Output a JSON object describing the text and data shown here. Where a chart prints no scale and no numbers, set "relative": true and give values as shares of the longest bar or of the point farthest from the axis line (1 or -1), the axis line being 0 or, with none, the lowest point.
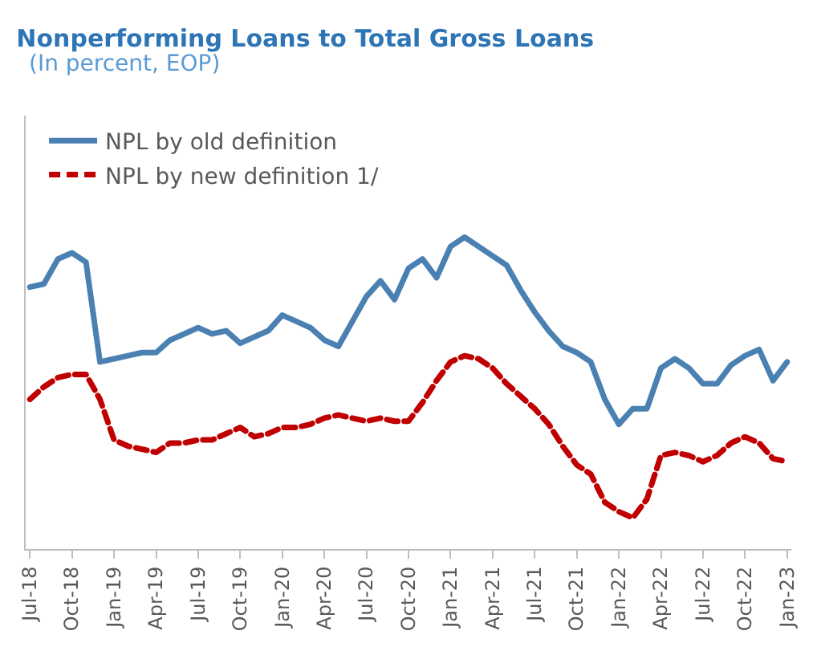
{
  "chart_data": {
    "type": "line",
    "title": "Nonperforming Loans to Total Gross Loans",
    "subtitle": "(In percent, EOP)",
    "relative": true,
    "legend": "top left",
    "categories": [
      "Jul-18",
      null,
      null,
      "Oct-18",
      null,
      null,
      "Jan-19",
      null,
      null,
      "Apr-19",
      null,
      null,
      "Jul-19",
      null,
      null,
      "Oct-19",
      null,
      null,
      "Jan-20",
      null,
      null,
      "Apr-20",
      null,
      null,
      "Jul-20",
      null,
      null,
      "Oct-20",
      null,
      null,
      "Jan-21",
      null,
      null,
      "Apr-21",
      null,
      null,
      "Jul-21",
      null,
      null,
      "Oct-21",
      null,
      null,
      "Jan-22",
      null,
      null,
      "Apr-22",
      null,
      null,
      "Jul-22",
      null,
      null,
      "Oct-22",
      null,
      null,
      "Jan-23"
    ],
    "series": [
      {
        "name": "NPL by old definition",
        "color": "#4a80b2",
        "line_style": "solid",
        "values": [
          0.84,
          0.85,
          0.93,
          0.95,
          0.92,
          0.6,
          0.61,
          0.62,
          0.63,
          0.63,
          0.67,
          0.69,
          0.71,
          0.69,
          0.7,
          0.66,
          0.68,
          0.7,
          0.75,
          0.73,
          0.71,
          0.67,
          0.65,
          0.73,
          0.81,
          0.86,
          0.8,
          0.9,
          0.93,
          0.87,
          0.97,
          1.0,
          0.97,
          0.94,
          0.91,
          0.83,
          0.76,
          0.7,
          0.65,
          0.63,
          0.6,
          0.48,
          0.4,
          0.45,
          0.45,
          0.58,
          0.61,
          0.58,
          0.53,
          0.53,
          0.59,
          0.62,
          0.64,
          0.54,
          0.6
        ]
      },
      {
        "name": "NPL by new definition 1/",
        "color": "#c00000",
        "line_style": "dashed",
        "values": [
          0.48,
          0.52,
          0.55,
          0.56,
          0.56,
          0.48,
          0.35,
          0.33,
          0.32,
          0.31,
          0.34,
          0.34,
          0.35,
          0.35,
          0.37,
          0.39,
          0.36,
          0.37,
          0.39,
          0.39,
          0.4,
          0.42,
          0.43,
          0.42,
          0.41,
          0.42,
          0.41,
          0.41,
          0.47,
          0.54,
          0.6,
          0.62,
          0.61,
          0.58,
          0.53,
          0.49,
          0.45,
          0.4,
          0.33,
          0.27,
          0.24,
          0.15,
          0.12,
          0.1,
          0.16,
          0.3,
          0.31,
          0.3,
          0.28,
          0.3,
          0.34,
          0.36,
          0.34,
          0.29,
          0.28
        ]
      }
    ]
  }
}
